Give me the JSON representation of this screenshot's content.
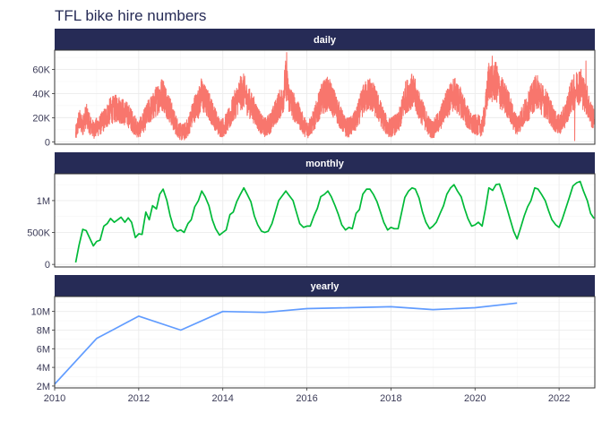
{
  "chart_data": {
    "type": "line",
    "title": "TFL bike hire numbers",
    "xlabel": "",
    "ylabel": "",
    "xlim": [
      2010,
      2022.85
    ],
    "x_ticks": [
      "2010",
      "2012",
      "2014",
      "2016",
      "2018",
      "2020",
      "2022"
    ],
    "x_tick_values": [
      2010,
      2012,
      2014,
      2016,
      2018,
      2020,
      2022
    ],
    "grid": true,
    "legend": "none",
    "colors": {
      "strip_background": "#262B56",
      "title": "#262B56",
      "daily": "#F8766D",
      "monthly": "#00BA38",
      "yearly": "#619CFF"
    },
    "panels": [
      {
        "name": "daily",
        "ylim": [
          -2000,
          76000
        ],
        "y_ticks": [
          "0",
          "20K",
          "40K",
          "60K"
        ],
        "y_tick_values": [
          0,
          20000,
          40000,
          60000
        ],
        "series": [
          {
            "color": "#F8766D",
            "x": [
              2010.5,
              2010.58,
              2010.67,
              2010.75,
              2010.83,
              2010.92,
              2011.0,
              2011.08,
              2011.17,
              2011.25,
              2011.33,
              2011.42,
              2011.5,
              2011.58,
              2011.67,
              2011.75,
              2011.83,
              2011.92,
              2012.0,
              2012.08,
              2012.17,
              2012.25,
              2012.33,
              2012.42,
              2012.5,
              2012.58,
              2012.67,
              2012.75,
              2012.83,
              2012.92,
              2013.0,
              2013.08,
              2013.17,
              2013.25,
              2013.33,
              2013.42,
              2013.5,
              2013.58,
              2013.67,
              2013.75,
              2013.83,
              2013.92,
              2014.0,
              2014.08,
              2014.17,
              2014.25,
              2014.33,
              2014.42,
              2014.5,
              2014.58,
              2014.67,
              2014.75,
              2014.83,
              2014.92,
              2015.0,
              2015.08,
              2015.17,
              2015.25,
              2015.33,
              2015.42,
              2015.5,
              2015.58,
              2015.67,
              2015.75,
              2015.83,
              2015.92,
              2016.0,
              2016.08,
              2016.17,
              2016.25,
              2016.33,
              2016.42,
              2016.5,
              2016.58,
              2016.67,
              2016.75,
              2016.83,
              2016.92,
              2017.0,
              2017.08,
              2017.17,
              2017.25,
              2017.33,
              2017.42,
              2017.5,
              2017.58,
              2017.67,
              2017.75,
              2017.83,
              2017.92,
              2018.0,
              2018.08,
              2018.17,
              2018.25,
              2018.33,
              2018.42,
              2018.5,
              2018.58,
              2018.67,
              2018.75,
              2018.83,
              2018.92,
              2019.0,
              2019.08,
              2019.17,
              2019.25,
              2019.33,
              2019.42,
              2019.5,
              2019.58,
              2019.67,
              2019.75,
              2019.83,
              2019.92,
              2020.0,
              2020.08,
              2020.17,
              2020.25,
              2020.33,
              2020.42,
              2020.5,
              2020.58,
              2020.67,
              2020.75,
              2020.83,
              2020.92,
              2021.0,
              2021.08,
              2021.17,
              2021.25,
              2021.33,
              2021.42,
              2021.5,
              2021.58,
              2021.67,
              2021.75,
              2021.83,
              2021.92,
              2022.0,
              2022.08,
              2022.17,
              2022.25,
              2022.33,
              2022.42,
              2022.5,
              2022.58,
              2022.67,
              2022.75,
              2022.83
            ],
            "y": [
              6000,
              18000,
              14000,
              22000,
              15000,
              10000,
              12000,
              14000,
              18000,
              22000,
              26000,
              27000,
              28000,
              26000,
              24000,
              22000,
              18000,
              13000,
              10000,
              15000,
              20000,
              26000,
              28000,
              34000,
              38000,
              40000,
              32000,
              26000,
              18000,
              12000,
              8000,
              8000,
              12000,
              20000,
              28000,
              32000,
              40000,
              34000,
              30000,
              24000,
              18000,
              12000,
              12000,
              15000,
              20000,
              28000,
              34000,
              40000,
              42000,
              35000,
              30000,
              26000,
              20000,
              14000,
              12000,
              14000,
              18000,
              24000,
              30000,
              34000,
              52000,
              36000,
              30000,
              26000,
              20000,
              14000,
              10000,
              13000,
              18000,
              26000,
              34000,
              38000,
              40000,
              36000,
              30000,
              24000,
              18000,
              12000,
              12000,
              14000,
              18000,
              26000,
              34000,
              38000,
              40000,
              36000,
              30000,
              24000,
              18000,
              12000,
              12000,
              14000,
              15000,
              24000,
              36000,
              40000,
              42000,
              38000,
              30000,
              24000,
              18000,
              12000,
              10000,
              14000,
              18000,
              26000,
              32000,
              36000,
              40000,
              36000,
              32000,
              26000,
              20000,
              14000,
              14000,
              14000,
              12000,
              28000,
              52000,
              48000,
              50000,
              42000,
              38000,
              34000,
              28000,
              18000,
              14000,
              18000,
              24000,
              28000,
              34000,
              40000,
              42000,
              36000,
              32000,
              28000,
              22000,
              16000,
              14000,
              18000,
              24000,
              34000,
              40000,
              44000,
              48000,
              40000,
              34000,
              24000,
              18000
            ],
            "noise_band": 9000,
            "spikes": [
              [
                2015.52,
                74000
              ],
              [
                2020.41,
                71000
              ],
              [
                2022.64,
                67000
              ],
              [
                2022.37,
                1000
              ]
            ]
          }
        ]
      },
      {
        "name": "monthly",
        "ylim": [
          -40000,
          1420000
        ],
        "y_ticks": [
          "0",
          "500K",
          "1M"
        ],
        "y_tick_values": [
          0,
          500000,
          1000000
        ],
        "series": [
          {
            "color": "#00BA38",
            "x": [
              2010.5,
              2010.58,
              2010.67,
              2010.75,
              2010.83,
              2010.92,
              2011.0,
              2011.08,
              2011.17,
              2011.25,
              2011.33,
              2011.42,
              2011.5,
              2011.58,
              2011.67,
              2011.75,
              2011.83,
              2011.92,
              2012.0,
              2012.08,
              2012.17,
              2012.25,
              2012.33,
              2012.42,
              2012.5,
              2012.58,
              2012.67,
              2012.75,
              2012.83,
              2012.92,
              2013.0,
              2013.08,
              2013.17,
              2013.25,
              2013.33,
              2013.42,
              2013.5,
              2013.58,
              2013.67,
              2013.75,
              2013.83,
              2013.92,
              2014.0,
              2014.08,
              2014.17,
              2014.25,
              2014.33,
              2014.42,
              2014.5,
              2014.58,
              2014.67,
              2014.75,
              2014.83,
              2014.92,
              2015.0,
              2015.08,
              2015.17,
              2015.25,
              2015.33,
              2015.42,
              2015.5,
              2015.58,
              2015.67,
              2015.75,
              2015.83,
              2015.92,
              2016.0,
              2016.08,
              2016.17,
              2016.25,
              2016.33,
              2016.42,
              2016.5,
              2016.58,
              2016.67,
              2016.75,
              2016.83,
              2016.92,
              2017.0,
              2017.08,
              2017.17,
              2017.25,
              2017.33,
              2017.42,
              2017.5,
              2017.58,
              2017.67,
              2017.75,
              2017.83,
              2017.92,
              2018.0,
              2018.08,
              2018.17,
              2018.25,
              2018.33,
              2018.42,
              2018.5,
              2018.58,
              2018.67,
              2018.75,
              2018.83,
              2018.92,
              2019.0,
              2019.08,
              2019.17,
              2019.25,
              2019.33,
              2019.42,
              2019.5,
              2019.58,
              2019.67,
              2019.75,
              2019.83,
              2019.92,
              2020.0,
              2020.08,
              2020.17,
              2020.25,
              2020.33,
              2020.42,
              2020.5,
              2020.58,
              2020.67,
              2020.75,
              2020.83,
              2020.92,
              2021.0,
              2021.08,
              2021.17,
              2021.25,
              2021.33,
              2021.42,
              2021.5,
              2021.58,
              2021.67,
              2021.75,
              2021.83,
              2021.92,
              2022.0,
              2022.08,
              2022.17,
              2022.25,
              2022.33,
              2022.42,
              2022.5,
              2022.58,
              2022.67,
              2022.75,
              2022.83
            ],
            "y": [
              30000,
              300000,
              550000,
              530000,
              420000,
              290000,
              360000,
              380000,
              600000,
              640000,
              720000,
              660000,
              700000,
              740000,
              660000,
              730000,
              660000,
              420000,
              480000,
              470000,
              820000,
              700000,
              920000,
              870000,
              1100000,
              1180000,
              1000000,
              760000,
              580000,
              520000,
              540000,
              500000,
              640000,
              700000,
              900000,
              1000000,
              1150000,
              1060000,
              920000,
              700000,
              560000,
              460000,
              500000,
              540000,
              780000,
              820000,
              980000,
              1100000,
              1200000,
              1100000,
              980000,
              760000,
              620000,
              520000,
              500000,
              520000,
              640000,
              820000,
              1000000,
              1080000,
              1150000,
              1080000,
              1000000,
              820000,
              640000,
              580000,
              600000,
              600000,
              760000,
              880000,
              1060000,
              1100000,
              1150000,
              1060000,
              920000,
              780000,
              620000,
              540000,
              580000,
              560000,
              800000,
              860000,
              1100000,
              1180000,
              1180000,
              1100000,
              980000,
              820000,
              660000,
              540000,
              580000,
              560000,
              560000,
              800000,
              1050000,
              1150000,
              1200000,
              1180000,
              1040000,
              820000,
              660000,
              560000,
              600000,
              660000,
              800000,
              920000,
              1100000,
              1200000,
              1250000,
              1150000,
              1060000,
              880000,
              720000,
              600000,
              620000,
              660000,
              600000,
              880000,
              1200000,
              1160000,
              1250000,
              1260000,
              1080000,
              900000,
              720000,
              520000,
              400000,
              560000,
              760000,
              900000,
              1000000,
              1200000,
              1180000,
              1100000,
              1000000,
              840000,
              700000,
              620000,
              580000,
              720000,
              900000,
              1060000,
              1230000,
              1280000,
              1300000,
              1150000,
              1000000,
              800000,
              720000
            ]
          }
        ]
      },
      {
        "name": "yearly",
        "ylim": [
          1800000,
          11600000
        ],
        "y_ticks": [
          "2M",
          "4M",
          "6M",
          "8M",
          "10M"
        ],
        "y_tick_values": [
          2000000,
          4000000,
          6000000,
          8000000,
          10000000
        ],
        "series": [
          {
            "color": "#619CFF",
            "x": [
              2010,
              2011,
              2012,
              2013,
              2014,
              2015,
              2016,
              2017,
              2018,
              2019,
              2020,
              2021
            ],
            "y": [
              2200000,
              7100000,
              9500000,
              8000000,
              10000000,
              9900000,
              10300000,
              10400000,
              10500000,
              10200000,
              10400000,
              10900000
            ]
          }
        ]
      }
    ]
  }
}
